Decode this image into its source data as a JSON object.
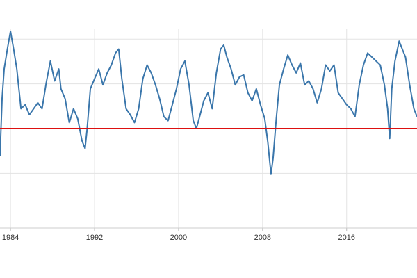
{
  "chart_data": {
    "type": "line",
    "title": "",
    "xlabel": "",
    "ylabel": "",
    "xlim": [
      1983.0,
      2022.7
    ],
    "ylim": [
      0,
      100
    ],
    "grid": true,
    "x_ticks": [
      {
        "value": 1984,
        "label": "1984"
      },
      {
        "value": 1992,
        "label": "1992"
      },
      {
        "value": 2000,
        "label": "2000"
      },
      {
        "value": 2008,
        "label": "2008"
      },
      {
        "value": 2016,
        "label": "2016"
      }
    ],
    "y_gridlines": [
      27.5,
      50,
      72.5,
      95
    ],
    "reference_line": {
      "value": 50,
      "color": "#dd1111"
    },
    "series": [
      {
        "color": "#3a76ab",
        "x": [
          1983.0,
          1983.2,
          1983.4,
          1983.7,
          1984.0,
          1984.3,
          1984.6,
          1985.0,
          1985.4,
          1985.8,
          1986.2,
          1986.6,
          1987.0,
          1987.4,
          1987.8,
          1988.2,
          1988.6,
          1988.8,
          1989.2,
          1989.6,
          1990.0,
          1990.4,
          1990.8,
          1991.1,
          1991.3,
          1991.6,
          1992.0,
          1992.4,
          1992.8,
          1993.2,
          1993.6,
          1994.0,
          1994.3,
          1994.6,
          1995.0,
          1995.4,
          1995.8,
          1996.2,
          1996.6,
          1997.0,
          1997.4,
          1997.8,
          1998.2,
          1998.6,
          1999.0,
          1999.4,
          1999.8,
          2000.2,
          2000.6,
          2001.0,
          2001.4,
          2001.7,
          2002.0,
          2002.4,
          2002.8,
          2003.2,
          2003.6,
          2004.0,
          2004.3,
          2004.6,
          2005.0,
          2005.4,
          2005.8,
          2006.2,
          2006.6,
          2007.0,
          2007.4,
          2007.8,
          2008.2,
          2008.5,
          2008.8,
          2009.0,
          2009.3,
          2009.6,
          2010.0,
          2010.4,
          2010.8,
          2011.2,
          2011.6,
          2012.0,
          2012.4,
          2012.8,
          2013.2,
          2013.6,
          2014.0,
          2014.4,
          2014.8,
          2015.2,
          2015.6,
          2016.0,
          2016.4,
          2016.8,
          2017.2,
          2017.6,
          2018.0,
          2018.4,
          2018.8,
          2019.2,
          2019.6,
          2019.9,
          2020.1,
          2020.3,
          2020.6,
          2021.0,
          2021.3,
          2021.6,
          2022.0,
          2022.4,
          2022.7
        ],
        "y": [
          36,
          65,
          80,
          90,
          99,
          90,
          80,
          60,
          62,
          57,
          60,
          63,
          60,
          73,
          84,
          74,
          80,
          70,
          65,
          53,
          60,
          55,
          44,
          40,
          50,
          70,
          75,
          80,
          72,
          78,
          82,
          88,
          90,
          75,
          60,
          57,
          53,
          60,
          75,
          82,
          78,
          72,
          65,
          56,
          54,
          62,
          70,
          80,
          84,
          72,
          54,
          50,
          56,
          64,
          68,
          60,
          78,
          90,
          92,
          86,
          80,
          72,
          76,
          77,
          68,
          64,
          70,
          62,
          55,
          43,
          27,
          35,
          55,
          72,
          80,
          87,
          82,
          78,
          83,
          72,
          74,
          70,
          63,
          70,
          82,
          79,
          82,
          68,
          65,
          62,
          60,
          56,
          72,
          82,
          88,
          86,
          84,
          82,
          72,
          60,
          45,
          70,
          84,
          94,
          90,
          86,
          72,
          60,
          56
        ]
      }
    ]
  }
}
